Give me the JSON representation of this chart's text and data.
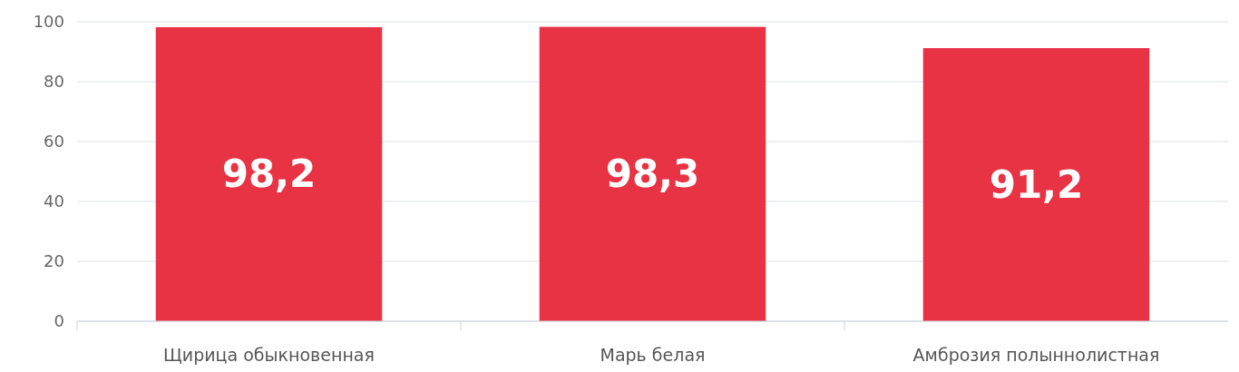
{
  "chart_data": {
    "type": "bar",
    "categories": [
      "Щирица обыкновенная",
      "Марь белая",
      "Амброзия полыннолистная"
    ],
    "values": [
      98.2,
      98.3,
      91.2
    ],
    "value_labels": [
      "98,2",
      "98,3",
      "91,2"
    ],
    "color": "#e83345",
    "ylim": [
      0,
      100
    ],
    "yticks": [
      0,
      20,
      40,
      60,
      80,
      100
    ],
    "grid": "y"
  }
}
